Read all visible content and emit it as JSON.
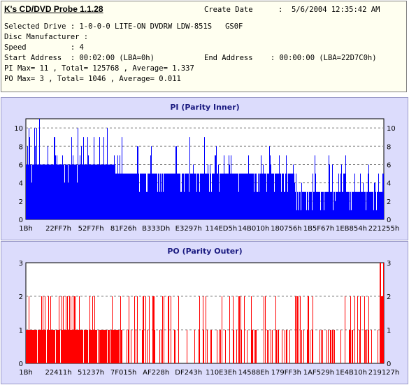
{
  "app": {
    "title": "K's CD/DVD Probe 1.1.28",
    "create_date_label": "Create Date",
    "create_date_value": ":  5/6/2004 12:35:42 AM"
  },
  "info": {
    "drive": "Selected Drive : 1-0-0-0 LITE-ON DVDRW LDW-851S   GS0F",
    "manufacturer": "Disc Manufacturer :",
    "speed": "Speed          : 4",
    "start": "Start Address  : 00:02:00 (LBA=0h)",
    "end": "End Address    : 00:00:00 (LBA=22D7C0h)",
    "pi": "PI Max= 11 , Total= 125768 , Average= 1.337",
    "po": "PO Max= 3 , Total= 1046 , Average= 0.011"
  },
  "chart_data": [
    {
      "type": "bar",
      "title": "PI (Parity Inner)",
      "color": "#0000ff",
      "ylim": [
        0,
        11
      ],
      "yticks": [
        0,
        2,
        4,
        6,
        8,
        10
      ],
      "grid": true,
      "x_tick_labels": [
        "1Bh",
        "22FF7h",
        "52F7Fh",
        "81F26h",
        "B333Dh",
        "E3297h",
        "114ED5h",
        "14B010h",
        "180756h",
        "1B5F67h",
        "1EB854h",
        "221255h"
      ],
      "segments": [
        {
          "x_from": 0.0,
          "x_to": 0.25,
          "base": 6,
          "peak": 11
        },
        {
          "x_from": 0.25,
          "x_to": 0.5,
          "base": 5,
          "peak": 10
        },
        {
          "x_from": 0.5,
          "x_to": 0.75,
          "base": 5,
          "peak": 8
        },
        {
          "x_from": 0.75,
          "x_to": 1.0,
          "base": 3,
          "peak": 7
        }
      ]
    },
    {
      "type": "bar",
      "title": "PO (Parity Outer)",
      "color": "#ff0000",
      "ylim": [
        0,
        3
      ],
      "yticks": [
        0,
        1,
        2,
        3
      ],
      "grid": true,
      "x_tick_labels": [
        "1Bh",
        "22411h",
        "51237h",
        "7F015h",
        "AF228h",
        "DF243h",
        "110E3Eh",
        "14588Eh",
        "179FF3h",
        "1AF529h",
        "1E4B10h",
        "219127h"
      ],
      "dense_region": [
        0.0,
        0.27
      ],
      "max_value": 3
    }
  ]
}
